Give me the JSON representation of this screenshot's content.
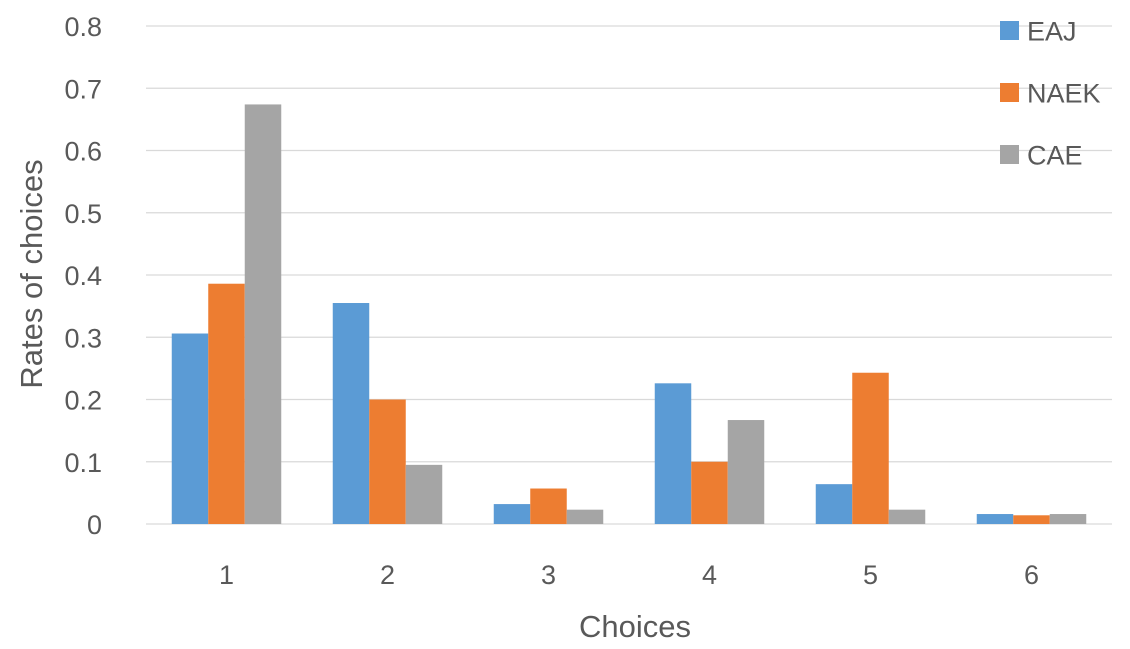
{
  "chart_data": {
    "type": "bar",
    "title": "",
    "xlabel": "Choices",
    "ylabel": "Rates of choices",
    "categories": [
      "1",
      "2",
      "3",
      "4",
      "5",
      "6"
    ],
    "ylim": [
      0,
      0.8
    ],
    "yticks": [
      "0",
      "0.1",
      "0.2",
      "0.3",
      "0.4",
      "0.5",
      "0.6",
      "0.7",
      "0.8"
    ],
    "grid": true,
    "legend_position": "top-right",
    "series": [
      {
        "name": "EAJ",
        "color": "#5b9bd5",
        "values": [
          0.306,
          0.355,
          0.032,
          0.226,
          0.064,
          0.016
        ]
      },
      {
        "name": "NAEK",
        "color": "#ed7d31",
        "values": [
          0.386,
          0.2,
          0.057,
          0.1,
          0.243,
          0.014
        ]
      },
      {
        "name": "CAE",
        "color": "#a5a5a5",
        "values": [
          0.674,
          0.095,
          0.023,
          0.167,
          0.023,
          0.016
        ]
      }
    ]
  }
}
